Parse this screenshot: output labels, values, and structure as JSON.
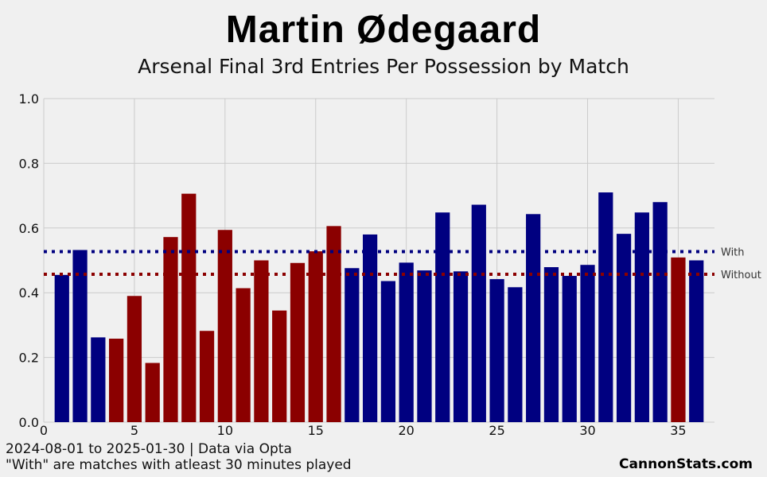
{
  "chart_data": {
    "type": "bar",
    "title": "Martin Ødegaard",
    "subtitle": "Arsenal Final 3rd Entries Per Possession by Match",
    "x": [
      1,
      2,
      3,
      4,
      5,
      6,
      7,
      8,
      9,
      10,
      11,
      12,
      13,
      14,
      15,
      16,
      17,
      18,
      19,
      20,
      21,
      22,
      23,
      24,
      25,
      26,
      27,
      28,
      29,
      30,
      31,
      32,
      33,
      34,
      35,
      36
    ],
    "values": [
      0.455,
      0.532,
      0.262,
      0.258,
      0.39,
      0.183,
      0.572,
      0.706,
      0.282,
      0.594,
      0.414,
      0.5,
      0.345,
      0.492,
      0.528,
      0.606,
      0.476,
      0.58,
      0.436,
      0.493,
      0.469,
      0.648,
      0.466,
      0.672,
      0.442,
      0.417,
      0.643,
      0.479,
      0.452,
      0.486,
      0.71,
      0.582,
      0.648,
      0.68,
      0.509,
      0.5
    ],
    "played": [
      true,
      true,
      true,
      false,
      false,
      false,
      false,
      false,
      false,
      false,
      false,
      false,
      false,
      false,
      false,
      false,
      true,
      true,
      true,
      true,
      true,
      true,
      true,
      true,
      true,
      true,
      true,
      true,
      true,
      true,
      true,
      true,
      true,
      true,
      false,
      true
    ],
    "xlim": [
      0,
      37
    ],
    "ylim": [
      0,
      1.0
    ],
    "xticks": [
      0,
      5,
      10,
      15,
      20,
      25,
      30,
      35
    ],
    "yticks": [
      0.0,
      0.2,
      0.4,
      0.6,
      0.8,
      1.0
    ],
    "grid": true,
    "reference_lines": [
      {
        "label": "With",
        "value": 0.527,
        "color": "#000080"
      },
      {
        "label": "Without",
        "value": 0.457,
        "color": "#8b0000"
      }
    ],
    "colors": {
      "with": "#000080",
      "without": "#8b0000",
      "grid": "#cbcbcb"
    }
  },
  "footnotes": {
    "line1": "2024-08-01 to 2025-01-30 | Data via Opta",
    "line2": "\"With\" are matches with atleast 30 minutes played"
  },
  "credit": "CannonStats.com"
}
